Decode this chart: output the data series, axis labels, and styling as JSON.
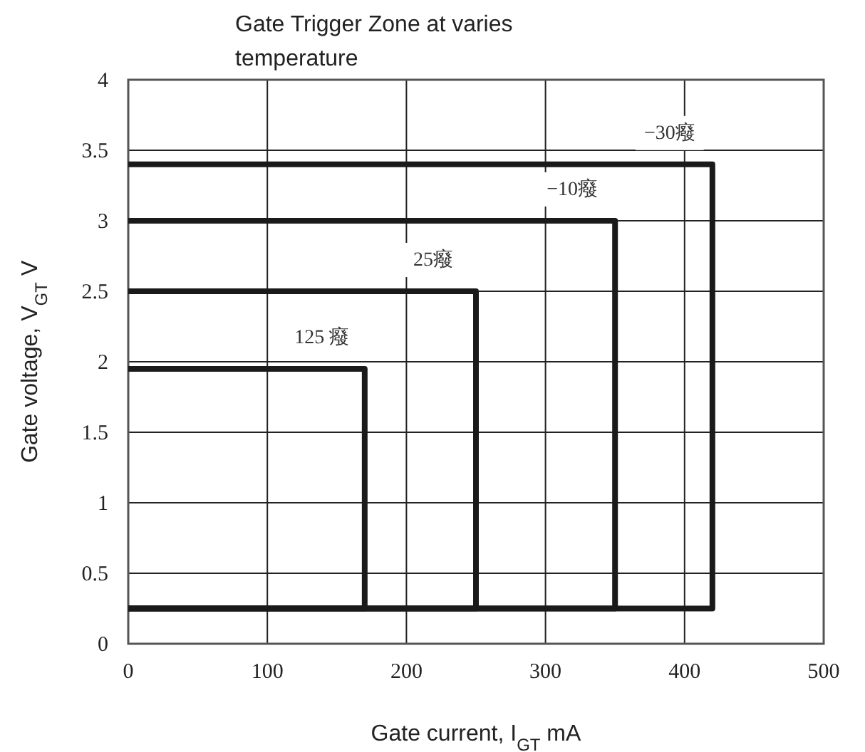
{
  "chart_data": {
    "type": "line",
    "title": "Gate Trigger  Zone at varies temperature",
    "xlabel": "Gate current, I$_{GT}$    mA",
    "ylabel": "Gate voltage, V$_{GT}$    V",
    "series": [
      {
        "name": "−30癈",
        "color": "#1a1a1a",
        "x": [
          0,
          420,
          420,
          0
        ],
        "values": [
          3.4,
          3.4,
          0.25,
          0.25
        ]
      },
      {
        "name": "−10癈",
        "color": "#1a1a1a",
        "x": [
          0,
          350,
          350,
          0
        ],
        "values": [
          3.0,
          3.0,
          0.25,
          0.25
        ]
      },
      {
        "name": "25癈",
        "color": "#1a1a1a",
        "x": [
          0,
          250,
          250,
          0
        ],
        "values": [
          2.5,
          2.5,
          0.25,
          0.25
        ]
      },
      {
        "name": "125 癈",
        "color": "#1a1a1a",
        "x": [
          0,
          170,
          170,
          0
        ],
        "values": [
          1.95,
          1.95,
          0.25,
          0.25
        ]
      }
    ],
    "xlim": [
      0,
      500
    ],
    "ylim": [
      0,
      4
    ],
    "xticks": [
      0,
      100,
      200,
      300,
      400,
      500
    ],
    "yticks": [
      0,
      0.5,
      1,
      1.5,
      2,
      2.5,
      3,
      3.5,
      4
    ],
    "grid": true,
    "marker": "none",
    "line_style": "solid"
  }
}
